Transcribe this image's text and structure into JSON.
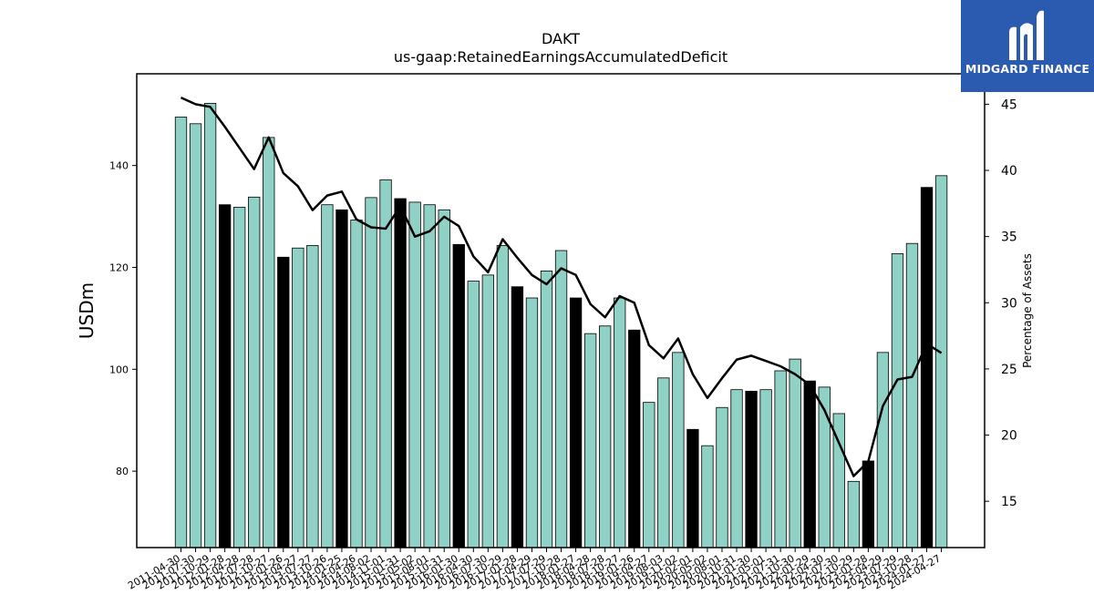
{
  "brand": {
    "logo_text": "MIDGARD FINANCE",
    "colors": {
      "background": "#2b5bb0",
      "text": "#ffffff"
    }
  },
  "chart_data": {
    "type": "bar",
    "title": "DAKT",
    "subtitle": "us-gaap:RetainedEarningsAccumulatedDeficit",
    "ylabel": "USDm",
    "y2label": "Percentage of Assets",
    "ylim": [
      65,
      158
    ],
    "y2lim": [
      11.5,
      47.3
    ],
    "yticks": [
      80,
      100,
      120,
      140
    ],
    "y2ticks": [
      15,
      20,
      25,
      30,
      35,
      40,
      45
    ],
    "colors": {
      "bar": "#8fd1c4",
      "highlight_bar": "#000000",
      "line": "#000000"
    },
    "categories": [
      "2011-04-30",
      "2011-07-30",
      "2011-10-29",
      "2012-01-28",
      "2012-04-28",
      "2012-07-28",
      "2012-10-27",
      "2013-01-26",
      "2013-04-27",
      "2013-07-27",
      "2013-10-26",
      "2014-01-25",
      "2014-04-26",
      "2014-08-02",
      "2014-11-01",
      "2015-01-31",
      "2015-05-02",
      "2015-08-01",
      "2015-10-31",
      "2016-01-30",
      "2016-04-30",
      "2016-07-30",
      "2016-10-29",
      "2017-01-28",
      "2017-04-29",
      "2017-07-29",
      "2017-10-28",
      "2018-01-27",
      "2018-04-28",
      "2018-07-28",
      "2018-10-27",
      "2019-01-26",
      "2019-04-27",
      "2019-08-03",
      "2019-11-02",
      "2020-02-01",
      "2020-05-02",
      "2020-08-01",
      "2020-10-31",
      "2021-01-30",
      "2021-05-01",
      "2021-07-31",
      "2021-10-30",
      "2022-01-29",
      "2022-04-30",
      "2022-07-30",
      "2022-10-29",
      "2023-01-28",
      "2023-04-29",
      "2023-07-29",
      "2023-10-28",
      "2024-01-27",
      "2024-04-27"
    ],
    "series": [
      {
        "values": [
          149.5,
          148.2,
          152.2,
          132.3,
          131.8,
          133.8,
          145.5,
          122.0,
          123.8,
          124.3,
          132.3,
          131.3,
          129.3,
          133.7,
          137.2,
          133.5,
          132.8,
          132.3,
          131.3,
          124.5,
          117.3,
          118.5,
          124.3,
          116.2,
          114.0,
          119.3,
          123.3,
          114.0,
          107.0,
          108.5,
          114.0,
          107.7,
          93.5,
          98.3,
          103.3,
          88.2,
          85.0,
          92.5,
          96.0,
          95.7,
          96.0,
          99.7,
          102.0,
          97.7,
          96.5,
          91.3,
          78.0,
          82.0,
          103.3,
          122.7,
          124.7,
          135.7,
          138.0
        ],
        "highlight": [
          false,
          false,
          false,
          true,
          false,
          false,
          false,
          true,
          false,
          false,
          false,
          true,
          false,
          false,
          false,
          true,
          false,
          false,
          false,
          true,
          false,
          false,
          false,
          true,
          false,
          false,
          false,
          true,
          false,
          false,
          false,
          true,
          false,
          false,
          false,
          true,
          false,
          false,
          false,
          true,
          false,
          false,
          false,
          true,
          false,
          false,
          false,
          true,
          false,
          false,
          false,
          true,
          false
        ]
      },
      {
        "axis": "right",
        "values": [
          45.5,
          45.0,
          44.8,
          43.3,
          41.7,
          40.1,
          42.5,
          39.8,
          38.8,
          37.0,
          38.1,
          38.4,
          36.3,
          35.7,
          35.6,
          37.3,
          35.0,
          35.4,
          36.5,
          35.8,
          33.5,
          32.3,
          34.8,
          33.4,
          32.1,
          31.4,
          32.6,
          32.1,
          29.9,
          28.9,
          30.5,
          30.0,
          26.8,
          25.8,
          27.3,
          24.6,
          22.8,
          24.3,
          25.7,
          26.0,
          25.6,
          25.2,
          24.6,
          23.8,
          21.9,
          19.4,
          16.9,
          18.0,
          22.2,
          24.2,
          24.4,
          26.9,
          26.2
        ]
      }
    ]
  }
}
